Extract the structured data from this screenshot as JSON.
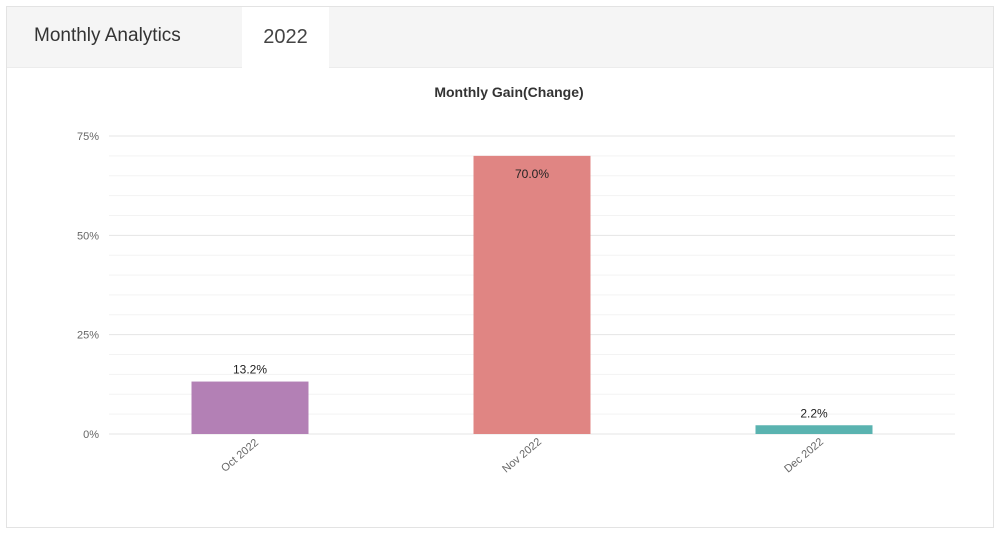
{
  "panel": {
    "title": "Monthly Analytics",
    "year_tab": "2022"
  },
  "colors": {
    "header_bg": "#f5f5f5",
    "text": "#333333",
    "grid": "#e8e8e8",
    "axis_label": "#666666"
  },
  "chart_data": {
    "type": "bar",
    "title": "Monthly Gain(Change)",
    "xlabel": "",
    "ylabel": "",
    "categories": [
      "Oct 2022",
      "Nov 2022",
      "Dec 2022"
    ],
    "values": [
      13.2,
      70.0,
      2.2
    ],
    "value_labels": [
      "13.2%",
      "70.0%",
      "2.2%"
    ],
    "bar_colors": [
      "#b380b5",
      "#e08583",
      "#5ab3b0"
    ],
    "ylim": [
      0,
      75
    ],
    "yticks": [
      0,
      25,
      50,
      75
    ],
    "ytick_labels": [
      "0%",
      "25%",
      "50%",
      "75%"
    ],
    "grid": true,
    "legend": "none"
  }
}
